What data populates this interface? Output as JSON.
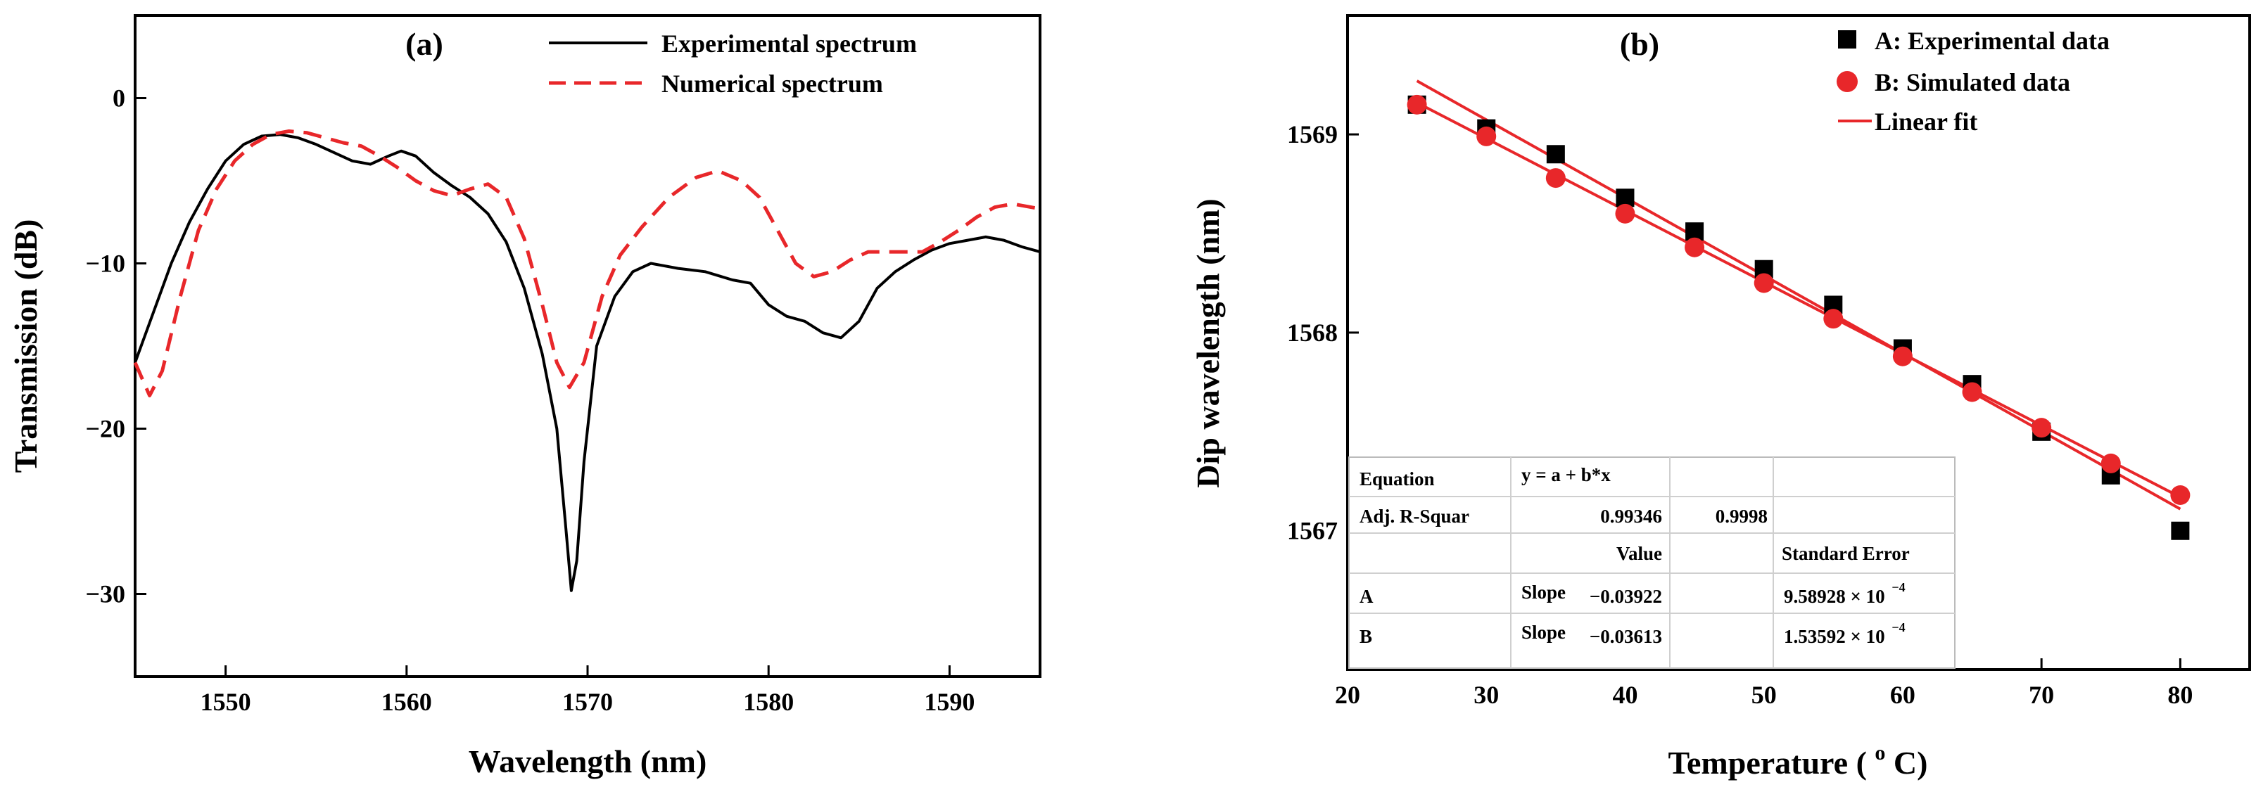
{
  "chart_data": [
    {
      "type": "line",
      "panel_label": "(a)",
      "xlabel": "Wavelength (nm)",
      "ylabel": "Transmission (dB)",
      "xlim": [
        1545,
        1595
      ],
      "ylim": [
        -35,
        5
      ],
      "xticks": [
        1550,
        1560,
        1570,
        1580,
        1590
      ],
      "yticks": [
        0,
        -10,
        -20,
        -30
      ],
      "ytick_labels": [
        "0",
        "−10",
        "−20",
        "−30"
      ],
      "legend": [
        "Experimental spectrum",
        "Numerical spectrum"
      ],
      "series": [
        {
          "name": "Experimental spectrum",
          "color": "#000000",
          "style": "solid",
          "points": [
            [
              1545,
              -16
            ],
            [
              1546,
              -13
            ],
            [
              1547,
              -10
            ],
            [
              1548,
              -7.5
            ],
            [
              1549,
              -5.5
            ],
            [
              1550,
              -3.8
            ],
            [
              1551,
              -2.8
            ],
            [
              1552,
              -2.3
            ],
            [
              1553,
              -2.2
            ],
            [
              1554,
              -2.4
            ],
            [
              1555,
              -2.8
            ],
            [
              1556,
              -3.3
            ],
            [
              1557,
              -3.8
            ],
            [
              1558,
              -4
            ],
            [
              1559,
              -3.5
            ],
            [
              1559.7,
              -3.2
            ],
            [
              1560.5,
              -3.5
            ],
            [
              1561.5,
              -4.5
            ],
            [
              1562.5,
              -5.3
            ],
            [
              1563.5,
              -6
            ],
            [
              1564.5,
              -7
            ],
            [
              1565.5,
              -8.7
            ],
            [
              1566.5,
              -11.5
            ],
            [
              1567.5,
              -15.5
            ],
            [
              1568.3,
              -20
            ],
            [
              1568.8,
              -26
            ],
            [
              1569.1,
              -29.8
            ],
            [
              1569.4,
              -28
            ],
            [
              1569.8,
              -22
            ],
            [
              1570.5,
              -15
            ],
            [
              1571.5,
              -12
            ],
            [
              1572.5,
              -10.5
            ],
            [
              1573.5,
              -10
            ],
            [
              1575,
              -10.3
            ],
            [
              1576.5,
              -10.5
            ],
            [
              1578,
              -11
            ],
            [
              1579,
              -11.2
            ],
            [
              1580,
              -12.5
            ],
            [
              1581,
              -13.2
            ],
            [
              1582,
              -13.5
            ],
            [
              1583,
              -14.2
            ],
            [
              1584,
              -14.5
            ],
            [
              1585,
              -13.5
            ],
            [
              1586,
              -11.5
            ],
            [
              1587,
              -10.5
            ],
            [
              1588,
              -9.8
            ],
            [
              1589,
              -9.2
            ],
            [
              1590,
              -8.8
            ],
            [
              1591,
              -8.6
            ],
            [
              1592,
              -8.4
            ],
            [
              1593,
              -8.6
            ],
            [
              1594,
              -9
            ],
            [
              1595,
              -9.3
            ]
          ]
        },
        {
          "name": "Numerical spectrum",
          "color": "#e8272a",
          "style": "dashed",
          "points": [
            [
              1545,
              -16
            ],
            [
              1545.8,
              -18
            ],
            [
              1546.5,
              -16.5
            ],
            [
              1547.5,
              -12
            ],
            [
              1548.5,
              -8
            ],
            [
              1549.5,
              -5.5
            ],
            [
              1550.5,
              -3.8
            ],
            [
              1551.5,
              -2.8
            ],
            [
              1552.5,
              -2.2
            ],
            [
              1553.5,
              -2
            ],
            [
              1554.5,
              -2.1
            ],
            [
              1555.5,
              -2.4
            ],
            [
              1556.5,
              -2.7
            ],
            [
              1557.5,
              -2.9
            ],
            [
              1558.5,
              -3.5
            ],
            [
              1559.5,
              -4.2
            ],
            [
              1560.5,
              -5
            ],
            [
              1561.5,
              -5.6
            ],
            [
              1562.5,
              -5.9
            ],
            [
              1563.5,
              -5.5
            ],
            [
              1564.5,
              -5.2
            ],
            [
              1565.5,
              -6
            ],
            [
              1566.5,
              -8.5
            ],
            [
              1567.5,
              -12.5
            ],
            [
              1568.3,
              -16
            ],
            [
              1569,
              -17.5
            ],
            [
              1569.8,
              -16
            ],
            [
              1570.8,
              -12
            ],
            [
              1571.8,
              -9.5
            ],
            [
              1573,
              -7.8
            ],
            [
              1574.5,
              -6
            ],
            [
              1576,
              -4.8
            ],
            [
              1577.2,
              -4.4
            ],
            [
              1578.5,
              -5
            ],
            [
              1579.5,
              -6
            ],
            [
              1580.5,
              -8
            ],
            [
              1581.5,
              -10
            ],
            [
              1582.5,
              -10.8
            ],
            [
              1583.5,
              -10.5
            ],
            [
              1584.5,
              -9.8
            ],
            [
              1585.5,
              -9.3
            ],
            [
              1587,
              -9.3
            ],
            [
              1588.5,
              -9.3
            ],
            [
              1589.5,
              -8.7
            ],
            [
              1590.5,
              -8
            ],
            [
              1591.5,
              -7.2
            ],
            [
              1592.5,
              -6.6
            ],
            [
              1593.5,
              -6.4
            ],
            [
              1595,
              -6.7
            ]
          ]
        }
      ]
    },
    {
      "type": "scatter",
      "panel_label": "(b)",
      "xlabel_main": "Temperature (",
      "xlabel_sup": "o",
      "xlabel_end": "C)",
      "ylabel": "Dip wavelength (nm)",
      "xlim": [
        20,
        85
      ],
      "ylim": [
        1566.3,
        1569.6
      ],
      "xticks": [
        20,
        30,
        40,
        50,
        60,
        70,
        80
      ],
      "yticks": [
        1567,
        1568,
        1569
      ],
      "legend": [
        "A: Experimental data",
        "B: Simulated data",
        "Linear fit"
      ],
      "series": [
        {
          "name": "A: Experimental data",
          "marker": "square",
          "color": "#000000",
          "x": [
            25,
            30,
            35,
            40,
            45,
            50,
            55,
            60,
            65,
            70,
            75,
            80
          ],
          "y": [
            1569.15,
            1569.03,
            1568.9,
            1568.68,
            1568.51,
            1568.32,
            1568.14,
            1567.92,
            1567.74,
            1567.5,
            1567.28,
            1567.0
          ]
        },
        {
          "name": "B: Simulated data",
          "marker": "circle",
          "color": "#e8272a",
          "x": [
            25,
            30,
            35,
            40,
            45,
            50,
            55,
            60,
            65,
            70,
            75,
            80
          ],
          "y": [
            1569.15,
            1568.99,
            1568.78,
            1568.6,
            1568.43,
            1568.25,
            1568.07,
            1567.88,
            1567.7,
            1567.52,
            1567.34,
            1567.18
          ]
        }
      ],
      "fits": [
        {
          "name": "Linear fit A",
          "color": "#e8272a",
          "x": [
            25,
            80
          ],
          "y": [
            1569.27,
            1567.11
          ]
        },
        {
          "name": "Linear fit B",
          "color": "#e8272a",
          "x": [
            25,
            80
          ],
          "y": [
            1569.16,
            1567.17
          ]
        }
      ],
      "table": {
        "equation_label": "Equation",
        "equation_value": "y = a + b*x",
        "rsq_label": "Adj. R-Squar",
        "rsq_a": "0.99346",
        "rsq_b": "0.9998",
        "value_header": "Value",
        "error_header": "Standard Error",
        "rows": [
          {
            "series": "A",
            "param": "Slope",
            "value": "−0.03922",
            "error": "9.58928 × 10",
            "exp": "−4"
          },
          {
            "series": "B",
            "param": "Slope",
            "value": "−0.03613",
            "error": "1.53592 × 10",
            "exp": "−4"
          }
        ]
      }
    }
  ]
}
